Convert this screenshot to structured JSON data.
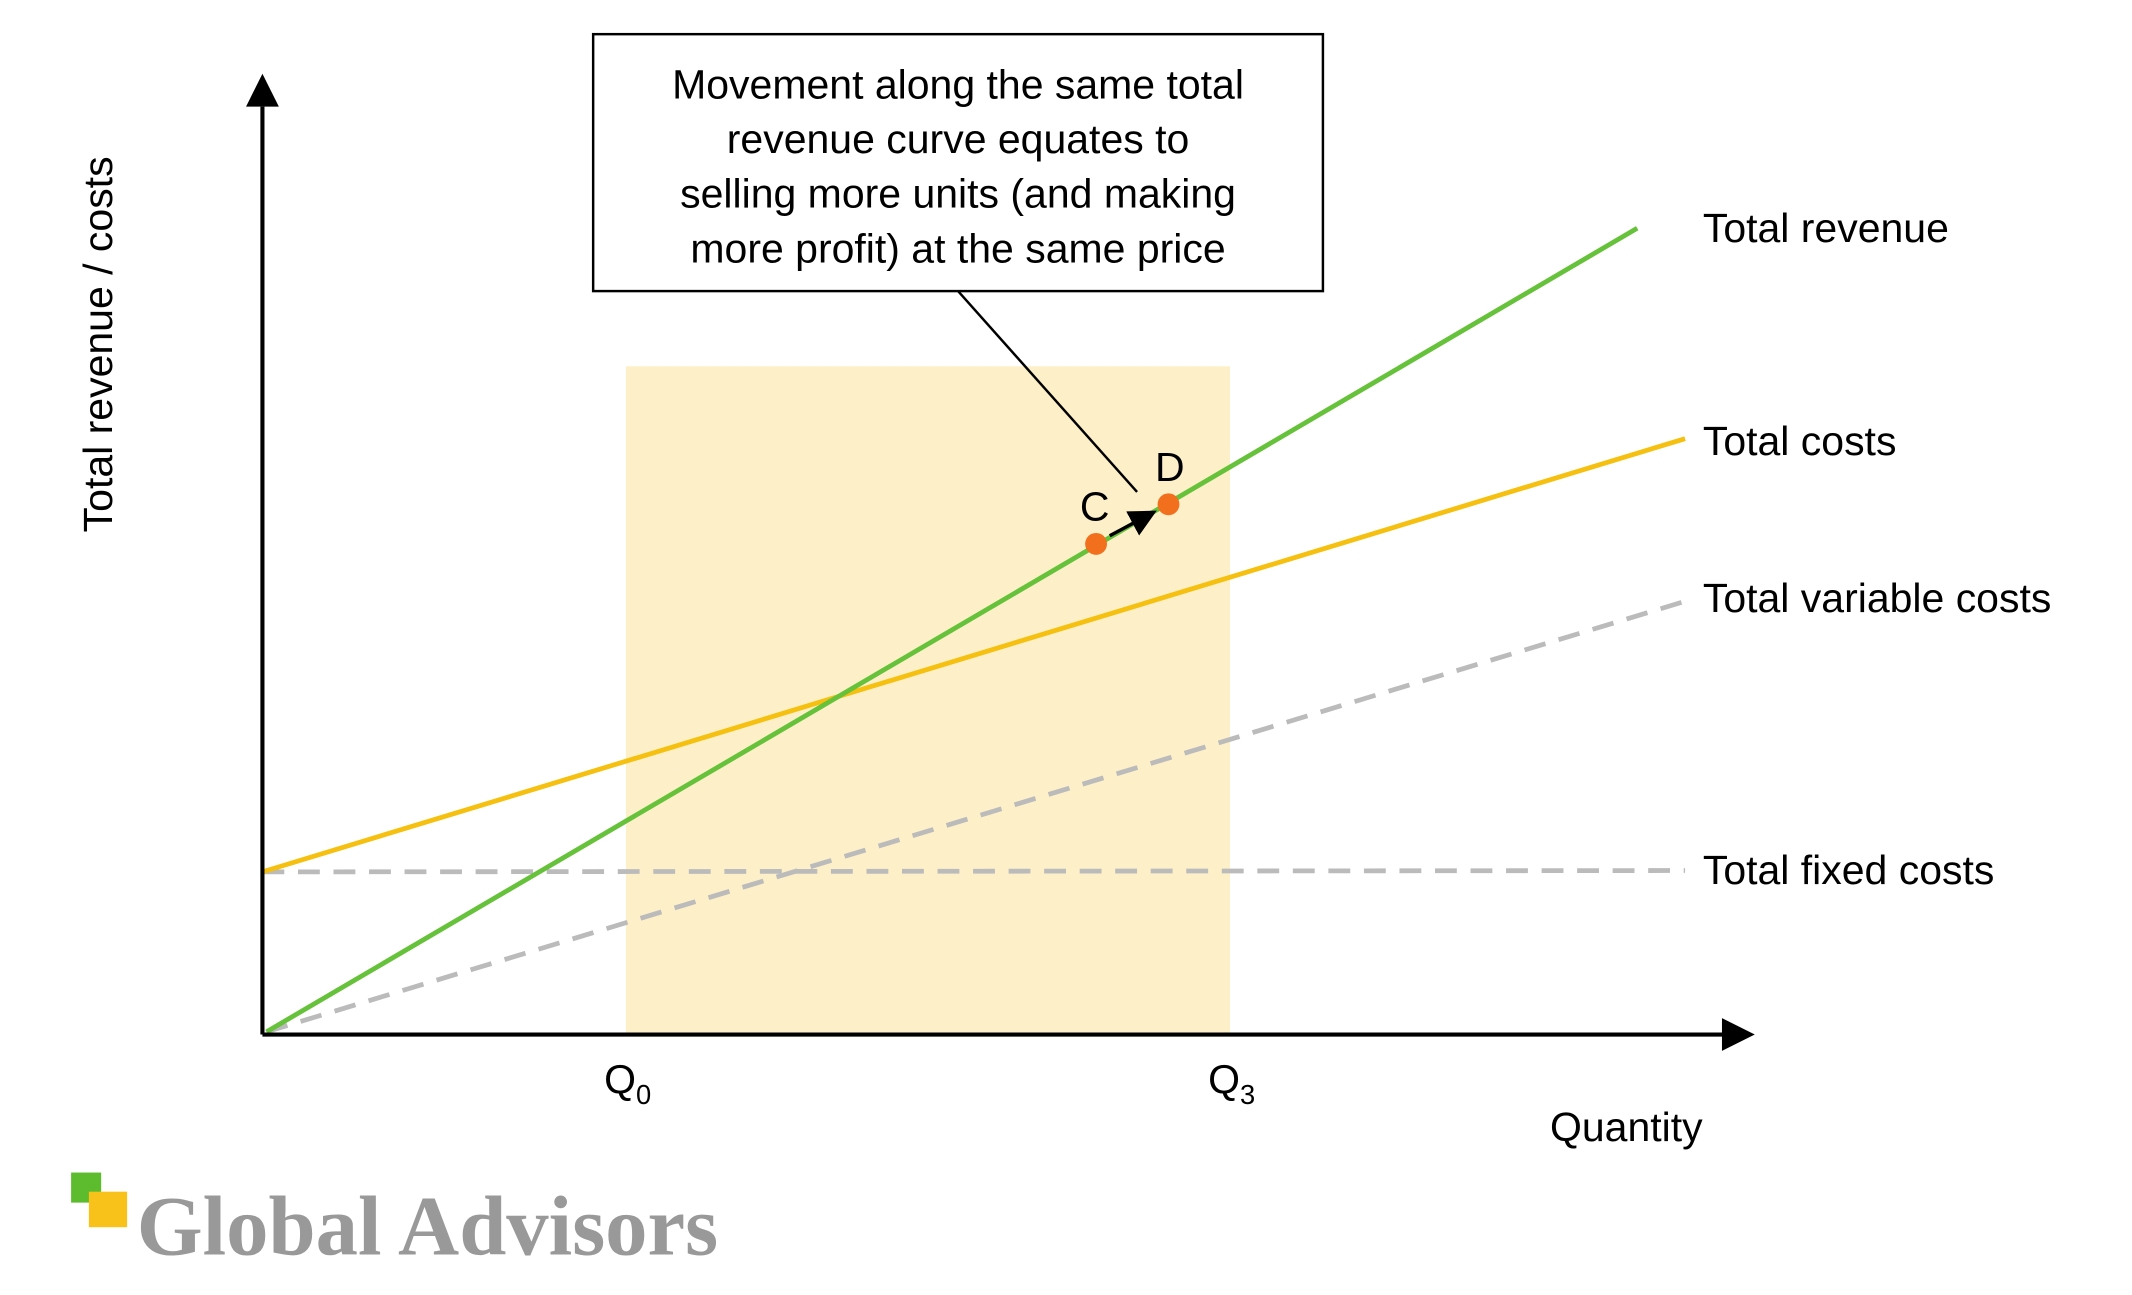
{
  "axes": {
    "y_label": "Total revenue / costs",
    "x_label": "Quantity",
    "x_ticks": [
      {
        "main": "Q",
        "sub": "0"
      },
      {
        "main": "Q",
        "sub": "3"
      }
    ]
  },
  "curves": {
    "total_revenue": "Total revenue",
    "total_costs": "Total costs",
    "total_variable_costs": "Total variable costs",
    "total_fixed_costs": "Total fixed costs"
  },
  "points": {
    "c": "C",
    "d": "D"
  },
  "callout": {
    "lines": [
      "Movement along the same total",
      "revenue curve equates to",
      "selling more units (and making",
      "more profit) at the same price"
    ]
  },
  "logo": {
    "text": "Global Advisors"
  }
}
